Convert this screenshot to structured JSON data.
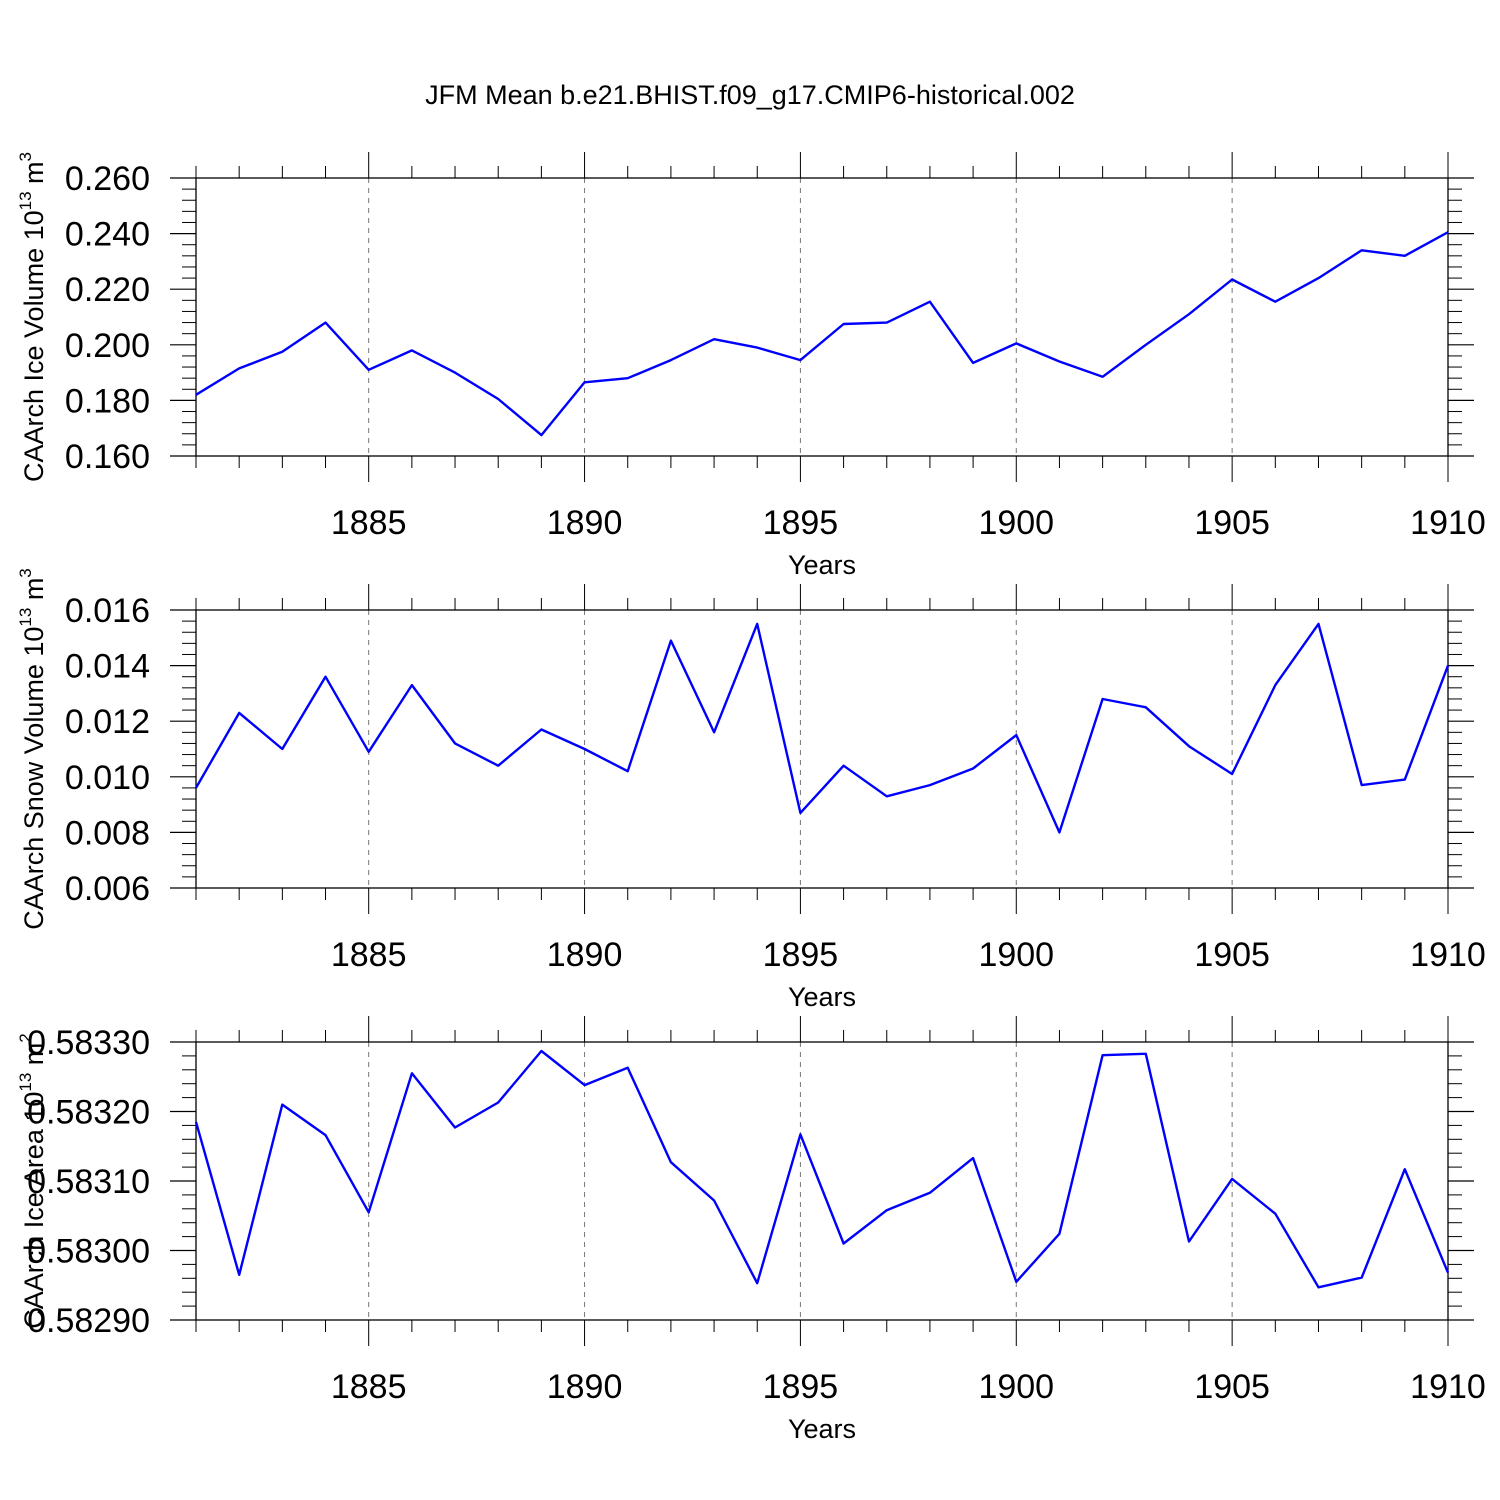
{
  "figure_title": "JFM Mean b.e21.BHIST.f09_g17.CMIP6-historical.002",
  "colors": {
    "line": "#0000ff",
    "axis": "#000000",
    "grid": "#777777"
  },
  "chart_data": [
    {
      "type": "line",
      "title": "JFM Mean b.e21.BHIST.f09_g17.CMIP6-historical.002",
      "xlabel": "Years",
      "ylabel": {
        "text": "CAArch Ice Volume 10",
        "exp": "13",
        "unit": " m",
        "unit_exp": "3"
      },
      "xlim": [
        1881,
        1910
      ],
      "ylim": [
        0.16,
        0.26
      ],
      "x_ticks": [
        1885,
        1890,
        1895,
        1900,
        1905,
        1910
      ],
      "y_ticks": [
        "0.160",
        "0.180",
        "0.200",
        "0.220",
        "0.240",
        "0.260"
      ],
      "y_tick_values": [
        0.16,
        0.18,
        0.2,
        0.22,
        0.24,
        0.26
      ],
      "grid": "vertical dashed at major x ticks",
      "x": [
        1881,
        1882,
        1883,
        1884,
        1885,
        1886,
        1887,
        1888,
        1889,
        1890,
        1891,
        1892,
        1893,
        1894,
        1895,
        1896,
        1897,
        1898,
        1899,
        1900,
        1901,
        1902,
        1903,
        1904,
        1905,
        1906,
        1907,
        1908,
        1909,
        1910
      ],
      "values": [
        0.182,
        0.1915,
        0.1975,
        0.208,
        0.191,
        0.198,
        0.19,
        0.1805,
        0.1675,
        0.1865,
        0.188,
        0.1945,
        0.202,
        0.199,
        0.1945,
        0.2075,
        0.208,
        0.2155,
        0.1935,
        0.2005,
        0.194,
        0.1885,
        0.2,
        0.211,
        0.2235,
        0.2155,
        0.224,
        0.234,
        0.232,
        0.2405
      ]
    },
    {
      "type": "line",
      "xlabel": "Years",
      "ylabel": {
        "text": "CAArch Snow Volume 10",
        "exp": "13",
        "unit": " m",
        "unit_exp": "3"
      },
      "xlim": [
        1881,
        1910
      ],
      "ylim": [
        0.006,
        0.016
      ],
      "x_ticks": [
        1885,
        1890,
        1895,
        1900,
        1905,
        1910
      ],
      "y_ticks": [
        "0.006",
        "0.008",
        "0.010",
        "0.012",
        "0.014",
        "0.016"
      ],
      "y_tick_values": [
        0.006,
        0.008,
        0.01,
        0.012,
        0.014,
        0.016
      ],
      "grid": "vertical dashed at major x ticks",
      "x": [
        1881,
        1882,
        1883,
        1884,
        1885,
        1886,
        1887,
        1888,
        1889,
        1890,
        1891,
        1892,
        1893,
        1894,
        1895,
        1896,
        1897,
        1898,
        1899,
        1900,
        1901,
        1902,
        1903,
        1904,
        1905,
        1906,
        1907,
        1908,
        1909,
        1910
      ],
      "values": [
        0.0096,
        0.0123,
        0.011,
        0.0136,
        0.0109,
        0.0133,
        0.0112,
        0.0104,
        0.0117,
        0.011,
        0.0102,
        0.0149,
        0.0116,
        0.0155,
        0.0087,
        0.0104,
        0.0093,
        0.0097,
        0.0103,
        0.0115,
        0.008,
        0.0128,
        0.0125,
        0.0111,
        0.0101,
        0.0133,
        0.0155,
        0.0097,
        0.0099,
        0.014
      ]
    },
    {
      "type": "line",
      "xlabel": "Years",
      "ylabel": {
        "text": "CAArch Ice Area 10",
        "exp": "13",
        "unit": " m",
        "unit_exp": "2"
      },
      "xlim": [
        1881,
        1910
      ],
      "ylim": [
        0.5829,
        0.5833
      ],
      "x_ticks": [
        1885,
        1890,
        1895,
        1900,
        1905,
        1910
      ],
      "y_ticks": [
        "0.58290",
        "0.58300",
        "0.58310",
        "0.58320",
        "0.58330"
      ],
      "y_tick_values": [
        0.5829,
        0.583,
        0.5831,
        0.5832,
        0.5833
      ],
      "grid": "vertical dashed at major x ticks",
      "x": [
        1881,
        1882,
        1883,
        1884,
        1885,
        1886,
        1887,
        1888,
        1889,
        1890,
        1891,
        1892,
        1893,
        1894,
        1895,
        1896,
        1897,
        1898,
        1899,
        1900,
        1901,
        1902,
        1903,
        1904,
        1905,
        1906,
        1907,
        1908,
        1909,
        1910
      ],
      "values": [
        0.583185,
        0.582965,
        0.58321,
        0.583166,
        0.583055,
        0.583255,
        0.583177,
        0.583213,
        0.583287,
        0.583238,
        0.583263,
        0.583127,
        0.583072,
        0.582953,
        0.583167,
        0.58301,
        0.583058,
        0.583083,
        0.583133,
        0.582955,
        0.583024,
        0.583281,
        0.583283,
        0.583013,
        0.583103,
        0.583053,
        0.582947,
        0.582961,
        0.583117,
        0.582968
      ]
    }
  ]
}
